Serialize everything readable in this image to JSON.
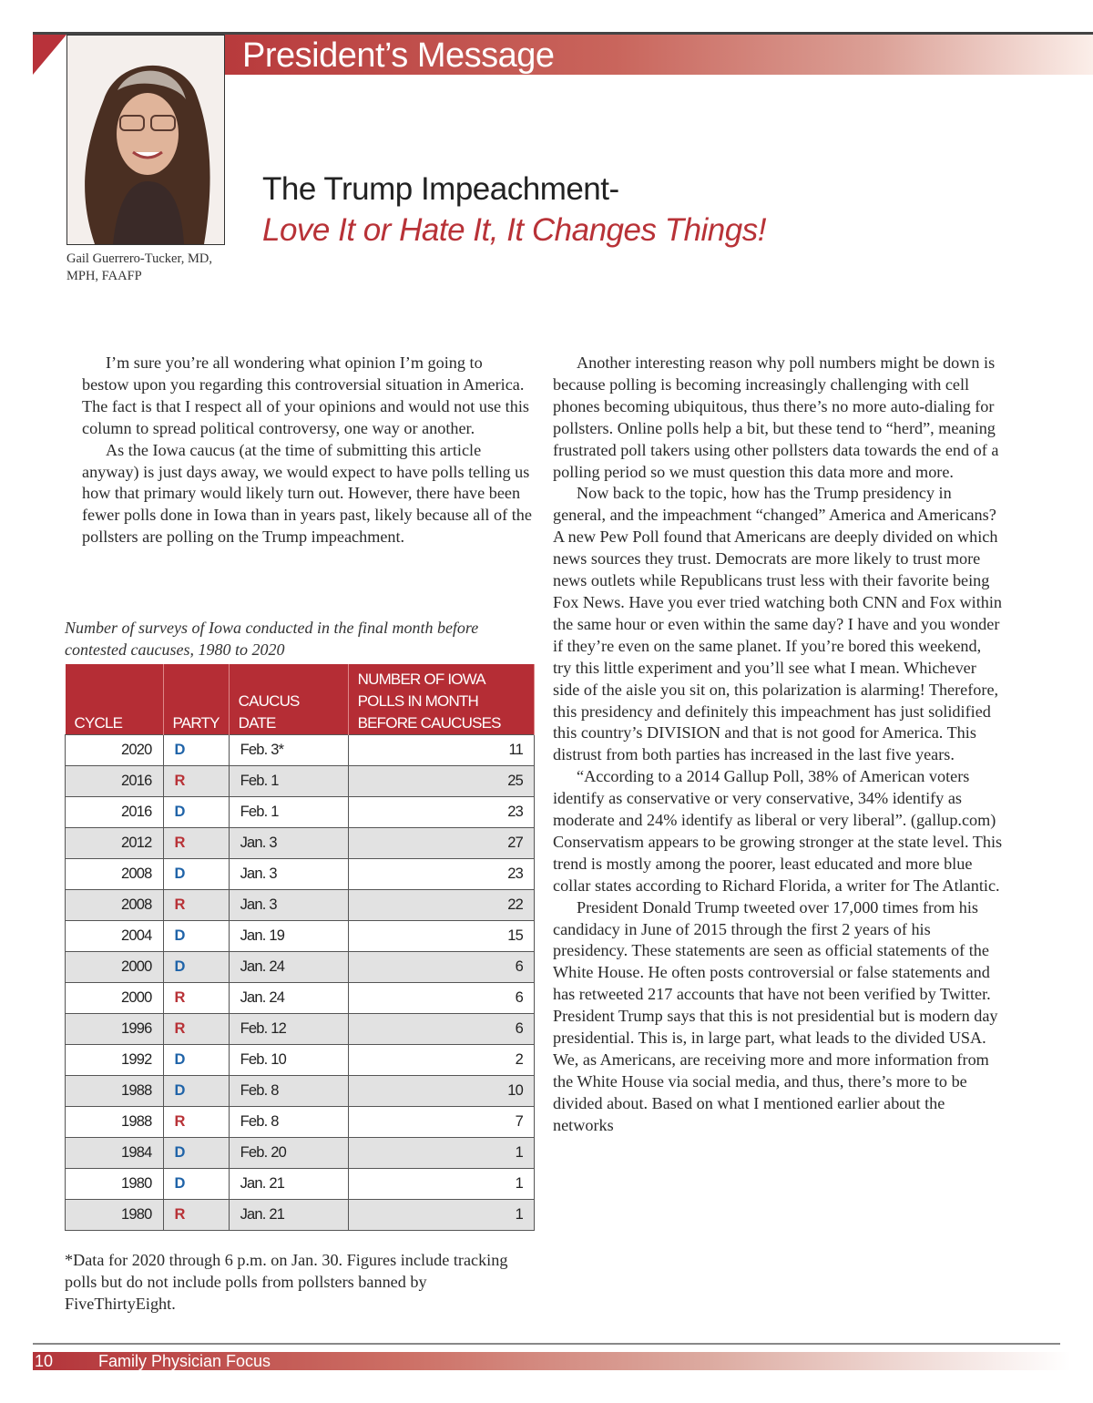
{
  "header": {
    "section": "President’s Message"
  },
  "author": {
    "caption_line1": "Gail Guerrero-Tucker, MD,",
    "caption_line2": "MPH, FAAFP"
  },
  "article": {
    "title": "The Trump Impeachment-",
    "subtitle": "Love It or Hate It, It Changes Things!"
  },
  "left_paragraphs": [
    "I’m sure you’re all wondering what opinion I’m going to bestow upon you regarding this controversial situation in America.  The fact is that I respect all of your opinions and would not use this column to spread political controversy, one way or another.",
    "As the Iowa caucus (at the time of submitting this article anyway) is just days away, we would expect to have polls telling us how that primary would likely turn out.  However, there have been fewer polls done in Iowa than in years past, likely because all of the pollsters are polling on the Trump impeachment."
  ],
  "table": {
    "caption": "Number of surveys of Iowa conducted in the final month before contested caucuses, 1980 to 2020",
    "headers": [
      "CYCLE",
      "PARTY",
      "CAUCUS DATE",
      "NUMBER OF IOWA POLLS IN MONTH BEFORE CAUCUSES"
    ],
    "rows": [
      [
        "2020",
        "D",
        "Feb. 3*",
        "11"
      ],
      [
        "2016",
        "R",
        "Feb. 1",
        "25"
      ],
      [
        "2016",
        "D",
        "Feb. 1",
        "23"
      ],
      [
        "2012",
        "R",
        "Jan. 3",
        "27"
      ],
      [
        "2008",
        "D",
        "Jan. 3",
        "23"
      ],
      [
        "2008",
        "R",
        "Jan. 3",
        "22"
      ],
      [
        "2004",
        "D",
        "Jan. 19",
        "15"
      ],
      [
        "2000",
        "D",
        "Jan. 24",
        "6"
      ],
      [
        "2000",
        "R",
        "Jan. 24",
        "6"
      ],
      [
        "1996",
        "R",
        "Feb. 12",
        "6"
      ],
      [
        "1992",
        "D",
        "Feb. 10",
        "2"
      ],
      [
        "1988",
        "D",
        "Feb. 8",
        "10"
      ],
      [
        "1988",
        "R",
        "Feb. 8",
        "7"
      ],
      [
        "1984",
        "D",
        "Feb. 20",
        "1"
      ],
      [
        "1980",
        "D",
        "Jan. 21",
        "1"
      ],
      [
        "1980",
        "R",
        "Jan. 21",
        "1"
      ]
    ],
    "note": "*Data for 2020 through 6 p.m. on Jan. 30. Figures include tracking polls but do not include polls from pollsters banned by FiveThirtyEight."
  },
  "right_paragraphs": [
    "Another interesting reason why poll numbers might be down is because polling is becoming increasingly challenging with cell phones becoming ubiquitous, thus there’s no more auto-dialing for pollsters.  Online polls help a bit, but these tend to “herd”, meaning frustrated poll takers using other pollsters data towards the end of a polling period so we must question this data more and more.",
    "Now back to the topic, how has the Trump presidency in general, and the impeachment “changed” America and Americans?  A new Pew Poll found that Americans are deeply divided on which news sources they trust. Democrats are more likely to trust more news outlets while Republicans trust less with their favorite being Fox News. Have you ever tried watching both CNN and Fox within the same hour or even within the same day?  I have and you wonder if they’re even on the same planet.  If you’re bored this weekend, try this little experiment and you’ll see what I mean.  Whichever side of the aisle you sit on, this polarization is alarming!  Therefore, this presidency and definitely this impeachment has just solidified this country’s DIVISION and that is not good for America.  This distrust from both parties has increased in the last five years.",
    "“According to a 2014 Gallup Poll, 38% of American voters identify as conservative or very conservative, 34% identify as moderate and 24% identify as liberal or very liberal”. (gallup.com)  Conservatism appears to be growing stronger at the state level.  This trend is mostly among the poorer, least educated and more blue collar states according to Richard Florida, a writer for The Atlantic.",
    "President Donald Trump tweeted over 17,000 times from his candidacy in June of 2015 through the first 2 years of his presidency. These statements are seen as official statements of the White House. He often posts controversial or false statements and has retweeted 217 accounts that have not been verified by Twitter. President Trump says that this is not presidential but is modern day presidential. This is, in large part, what leads to the divided USA. We, as Americans, are receiving more and more information from the White House via social media, and thus, there’s more to be divided about.  Based on what I mentioned earlier about the networks"
  ],
  "footer": {
    "page": "10",
    "magazine": "Family Physician Focus"
  },
  "colors": {
    "brand_red": "#b52d35",
    "democrat": "#1f63a8",
    "republican": "#b83237"
  }
}
